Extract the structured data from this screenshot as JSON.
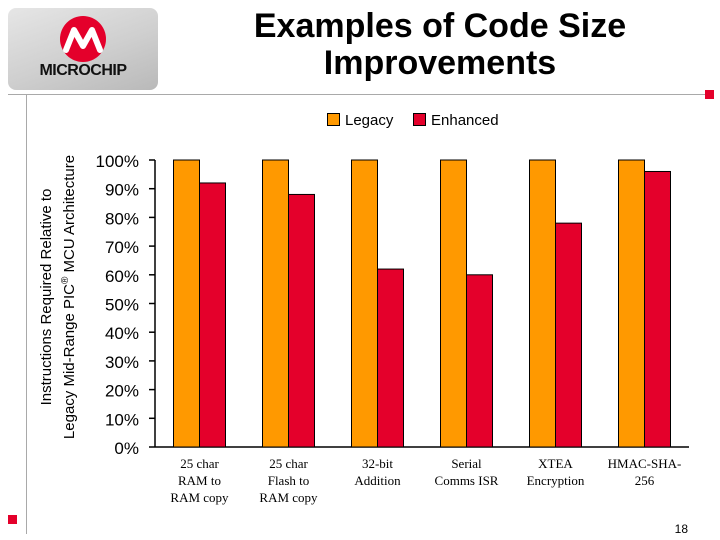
{
  "logo": {
    "text": "MICROCHIP"
  },
  "slide": {
    "title_line1": "Examples of Code Size",
    "title_line2": "Improvements",
    "page_number": "18"
  },
  "colors": {
    "legacy": "#FF9900",
    "enhanced": "#E4002B",
    "accent": "#E4002B"
  },
  "chart_data": {
    "type": "bar",
    "title": "",
    "ylabel_line1": "Instructions Required Relative to",
    "ylabel_line2_prefix": "Legacy Mid-Range PIC",
    "ylabel_line2_sup": "®",
    "ylabel_line2_suffix": " MCU Architecture",
    "ylim": [
      0,
      100
    ],
    "yticks": [
      "0%",
      "10%",
      "20%",
      "30%",
      "40%",
      "50%",
      "60%",
      "70%",
      "80%",
      "90%",
      "100%"
    ],
    "categories": [
      [
        "25 char",
        "RAM to",
        "RAM copy"
      ],
      [
        "25 char",
        "Flash to",
        "RAM copy"
      ],
      [
        "32-bit",
        "Addition"
      ],
      [
        "Serial",
        "Comms ISR"
      ],
      [
        "XTEA",
        "Encryption"
      ],
      [
        "HMAC-SHA-",
        "256"
      ]
    ],
    "series": [
      {
        "name": "Legacy",
        "values": [
          100,
          100,
          100,
          100,
          100,
          100
        ]
      },
      {
        "name": "Enhanced",
        "values": [
          92,
          88,
          62,
          60,
          78,
          96
        ]
      }
    ],
    "legend": "top",
    "grid": false
  }
}
